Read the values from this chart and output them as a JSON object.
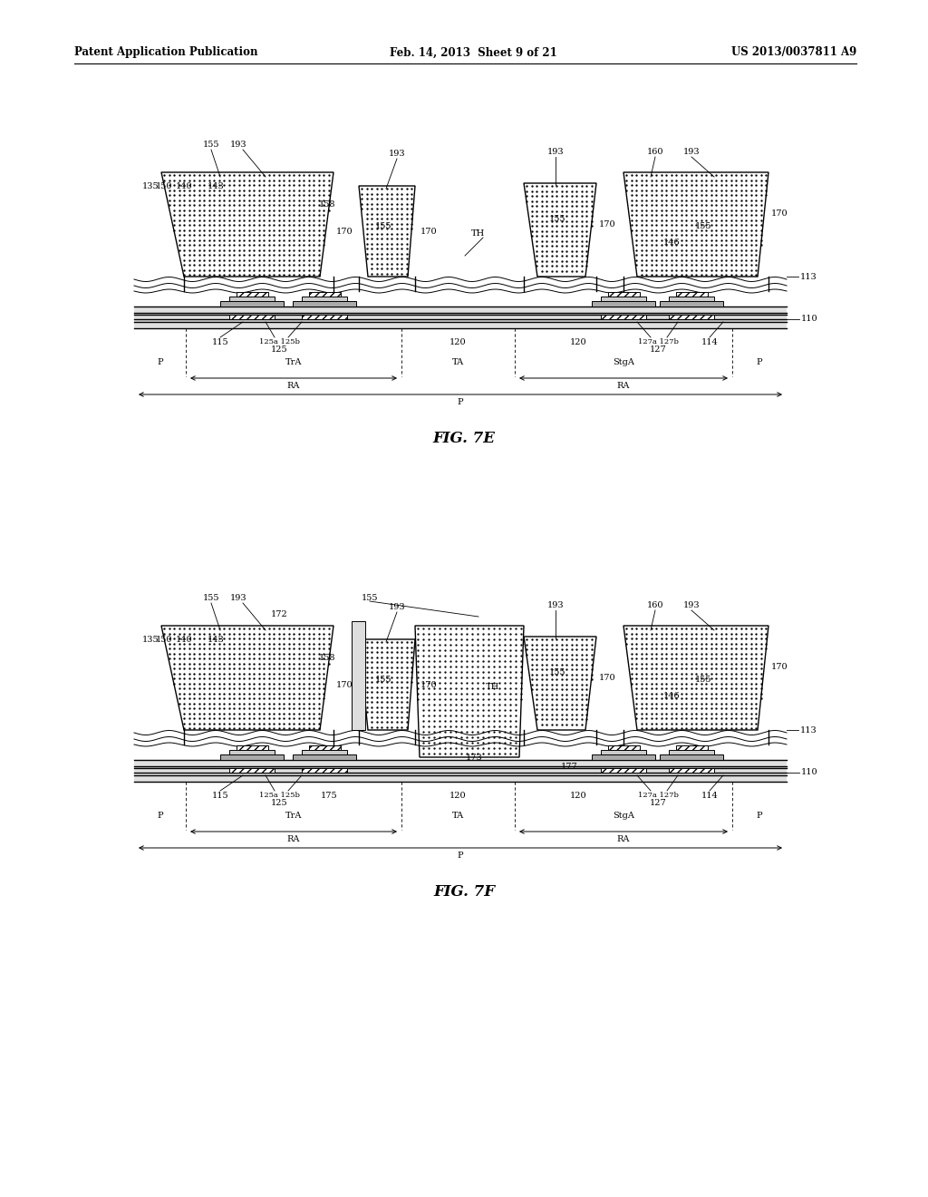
{
  "bg_color": "#ffffff",
  "header_left": "Patent Application Publication",
  "header_mid": "Feb. 14, 2013  Sheet 9 of 21",
  "header_right": "US 2013/0037811 A9",
  "fig7e_caption": "FIG. 7E",
  "fig7f_caption": "FIG. 7F"
}
